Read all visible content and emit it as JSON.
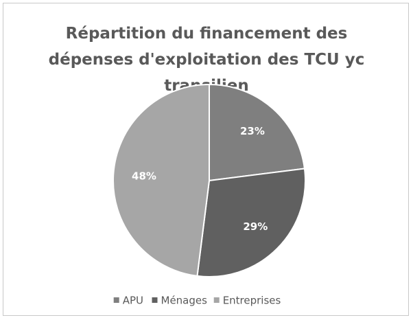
{
  "chart_data": {
    "type": "pie",
    "title": "Répartition du financement des dépenses d'exploitation des TCU yc transilien",
    "categories": [
      "APU",
      "Ménages",
      "Entreprises"
    ],
    "values": [
      23,
      29,
      48
    ],
    "value_labels": [
      "23%",
      "29%",
      "48%"
    ],
    "colors": [
      "#7f7f7f",
      "#606060",
      "#a6a6a6"
    ],
    "legend": "bottom"
  }
}
